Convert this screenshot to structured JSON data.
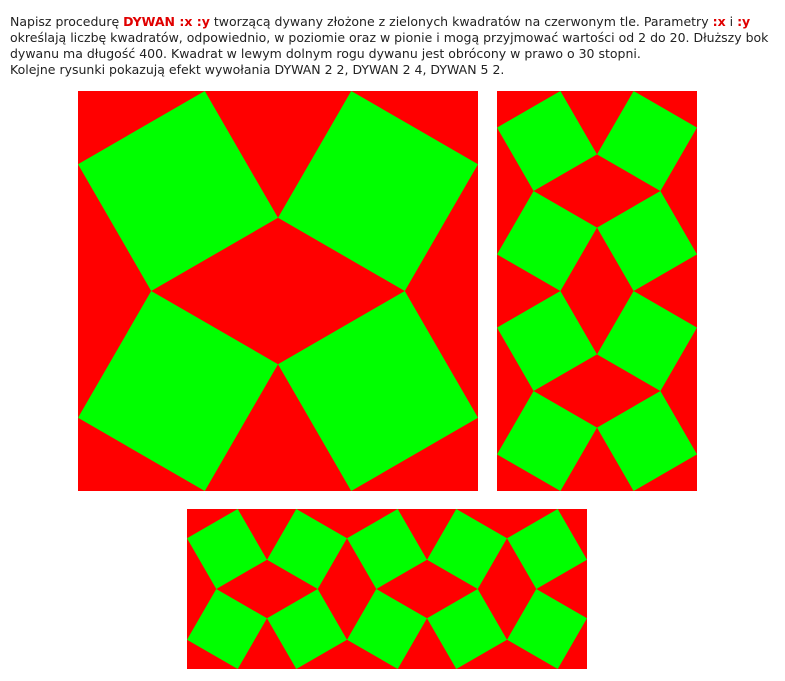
{
  "task": {
    "intro": "Napisz procedurę ",
    "proc_name": "DYWAN :x :y",
    "mid1": " tworzącą dywany złożone z zielonych kwadratów na czerwonym tle. Parametry ",
    "param_x": ":x",
    "and_word": " i ",
    "param_y": ":y",
    "mid2": " określają liczbę kwadratów, odpowiednio, w poziomie oraz w pionie i mogą przyjmować wartości od 2 do 20. Dłuższy bok dywanu ma długość 400. Kwadrat w lewym dolnym rogu dywanu jest obrócony w prawo o 30 stopni.",
    "line3": "Kolejne rysunki pokazują efekt wywołania DYWAN 2 2, DYWAN 2 4, DYWAN 5 2."
  },
  "colors": {
    "background": "#ff0000",
    "square": "#00ff00"
  },
  "carpets": [
    {
      "x": 2,
      "y": 2
    },
    {
      "x": 2,
      "y": 4
    },
    {
      "x": 5,
      "y": 2
    }
  ],
  "rotation_degrees": 30
}
